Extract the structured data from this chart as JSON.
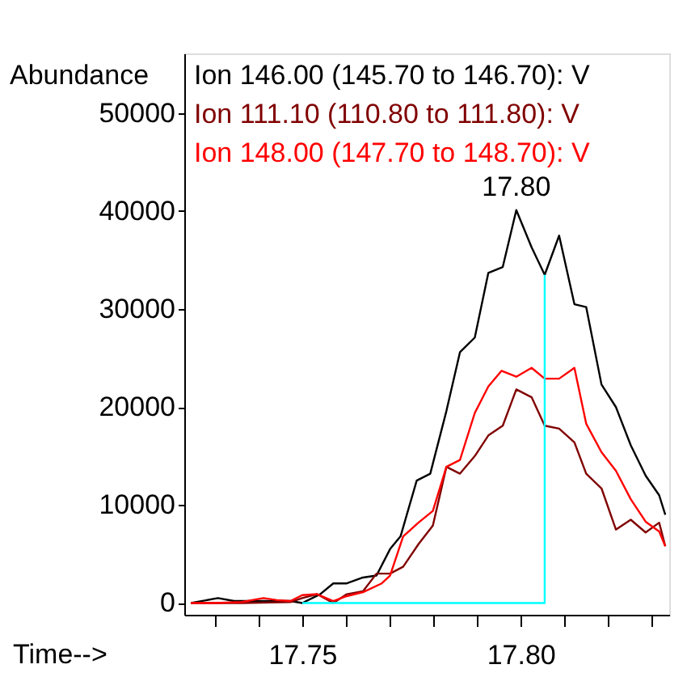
{
  "chart_data": {
    "type": "line",
    "xlabel": "Time-->",
    "ylabel": "Abundance",
    "xlim": [
      17.723,
      17.834
    ],
    "ylim": [
      -1200,
      56100
    ],
    "xticks": [
      {
        "value": 17.73,
        "label": null
      },
      {
        "value": 17.74,
        "label": null
      },
      {
        "value": 17.75,
        "label": "17.75"
      },
      {
        "value": 17.76,
        "label": null
      },
      {
        "value": 17.77,
        "label": null
      },
      {
        "value": 17.78,
        "label": null
      },
      {
        "value": 17.79,
        "label": null
      },
      {
        "value": 17.8,
        "label": "17.80"
      },
      {
        "value": 17.81,
        "label": null
      },
      {
        "value": 17.82,
        "label": null
      },
      {
        "value": 17.83,
        "label": null
      }
    ],
    "yticks": [
      0,
      10000,
      20000,
      30000,
      40000,
      50000
    ],
    "grid": false,
    "legend": "top",
    "marker": "none",
    "line_style": "solid",
    "annotations": [
      {
        "text": "17.80",
        "x": 17.799,
        "y": 40100
      }
    ],
    "series": [
      {
        "name": "Ion 146.00 (145.70 to 146.70): V",
        "color": "#000000",
        "x": [
          17.7245,
          17.7307,
          17.7344,
          17.7411,
          17.7473,
          17.75,
          17.7541,
          17.7571,
          17.7602,
          17.7639,
          17.767,
          17.7701,
          17.7725,
          17.7762,
          17.7793,
          17.783,
          17.7861,
          17.7895,
          17.7926,
          17.7959,
          17.799,
          17.8025,
          17.8055,
          17.8088,
          17.8123,
          17.815,
          17.8185,
          17.8218,
          17.8252,
          17.8286,
          17.8317,
          17.8331
        ],
        "values": [
          0,
          500,
          200,
          200,
          200,
          0,
          900,
          2000,
          2000,
          2600,
          2800,
          5500,
          6800,
          12500,
          13200,
          19600,
          25600,
          27100,
          33700,
          34300,
          40100,
          36300,
          33500,
          37500,
          30500,
          30200,
          22300,
          20000,
          16100,
          13000,
          11000,
          9000
        ]
      },
      {
        "name": "Ion 111.10 (110.80 to 111.80): V",
        "color": "#800000",
        "x": [
          17.7245,
          17.7362,
          17.7473,
          17.75,
          17.7534,
          17.7571,
          17.7602,
          17.7639,
          17.767,
          17.7701,
          17.7731,
          17.7766,
          17.7799,
          17.783,
          17.7861,
          17.7895,
          17.7926,
          17.7959,
          17.799,
          17.8025,
          17.8055,
          17.8088,
          17.8123,
          17.815,
          17.8185,
          17.8218,
          17.8252,
          17.8286,
          17.8317,
          17.8331
        ],
        "values": [
          0,
          0,
          100,
          500,
          900,
          0,
          900,
          1200,
          3000,
          3000,
          3700,
          6000,
          7900,
          13900,
          13200,
          15000,
          17100,
          18100,
          21800,
          21000,
          18100,
          17800,
          16400,
          13200,
          11700,
          7500,
          8500,
          7200,
          8200,
          5800
        ]
      },
      {
        "name": "Ion 148.00 (147.70 to 148.70): V",
        "color": "#ff0000",
        "x": [
          17.7245,
          17.7301,
          17.7362,
          17.7411,
          17.7442,
          17.7473,
          17.75,
          17.7534,
          17.7571,
          17.7602,
          17.7639,
          17.7682,
          17.7701,
          17.7731,
          17.7766,
          17.7799,
          17.783,
          17.7861,
          17.7895,
          17.7926,
          17.7956,
          17.799,
          17.8025,
          17.8055,
          17.8088,
          17.8123,
          17.815,
          17.8185,
          17.8218,
          17.8252,
          17.8286,
          17.8317,
          17.8331
        ],
        "values": [
          0,
          0,
          100,
          500,
          300,
          200,
          800,
          900,
          200,
          700,
          1100,
          2000,
          2800,
          6800,
          8200,
          9400,
          13900,
          14600,
          19400,
          22100,
          23700,
          23100,
          24000,
          22900,
          22900,
          24000,
          18300,
          15400,
          13500,
          10600,
          8300,
          7300,
          5800
        ]
      },
      {
        "color": "#00ffff",
        "x": [
          17.75,
          17.8055,
          17.8055
        ],
        "values": [
          0,
          0,
          33500
        ]
      }
    ]
  }
}
